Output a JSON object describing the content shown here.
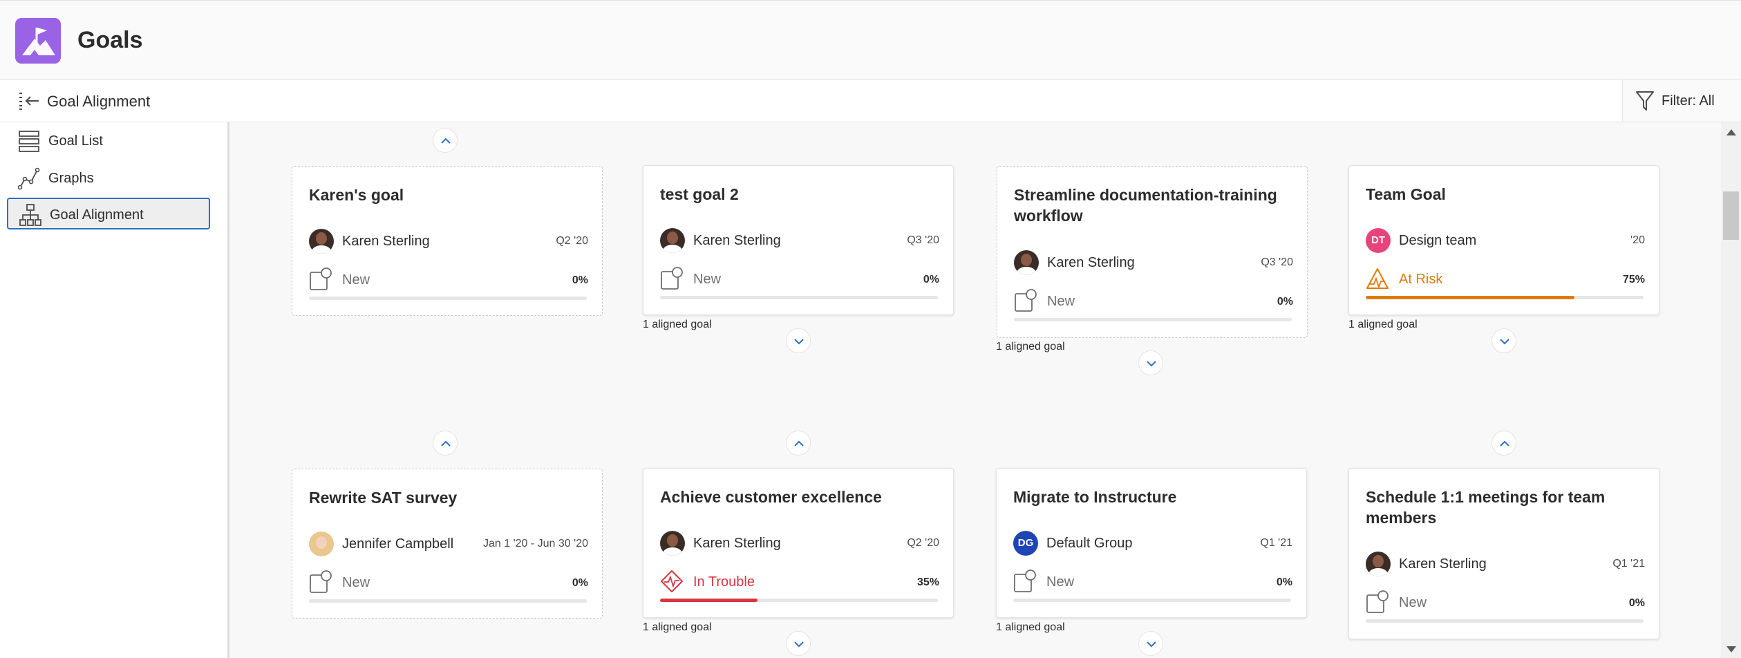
{
  "app": {
    "title": "Goals"
  },
  "subheader": {
    "title": "Goal Alignment",
    "filter_label": "Filter: All"
  },
  "sidebar": {
    "items": [
      {
        "label": "Goal List",
        "icon": "list-icon"
      },
      {
        "label": "Graphs",
        "icon": "graph-icon"
      },
      {
        "label": "Goal Alignment",
        "icon": "hierarchy-icon",
        "active": true
      }
    ]
  },
  "colors": {
    "accent": "#2b6fc9",
    "at_risk": "#e07a00",
    "in_trouble": "#d7373f",
    "design_team": "#e8447c",
    "default_group": "#1f45b5",
    "app_logo": "#9a63e6"
  },
  "cards": [
    {
      "title": "Karen's goal",
      "owner": "Karen Sterling",
      "owner_avatar": "photo",
      "date": "Q2 '20",
      "status": "New",
      "percent": "0%",
      "progress": 0,
      "aligned": ""
    },
    {
      "title": "test goal 2",
      "owner": "Karen Sterling",
      "owner_avatar": "photo",
      "date": "Q3 '20",
      "status": "New",
      "percent": "0%",
      "progress": 0,
      "aligned": "1 aligned goal"
    },
    {
      "title": "Streamline documentation-training workflow",
      "owner": "Karen Sterling",
      "owner_avatar": "photo",
      "date": "Q3 '20",
      "status": "New",
      "percent": "0%",
      "progress": 0,
      "aligned": "1 aligned goal"
    },
    {
      "title": "Team Goal",
      "owner": "Design team",
      "owner_initials": "DT",
      "date": "'20",
      "status": "At Risk",
      "percent": "75%",
      "progress": 0.75,
      "aligned": "1 aligned goal"
    },
    {
      "title": "Rewrite SAT survey",
      "owner": "Jennifer Campbell",
      "owner_avatar": "photo-blonde",
      "date": "Jan 1 '20  - Jun 30 '20",
      "status": "New",
      "percent": "0%",
      "progress": 0,
      "aligned": ""
    },
    {
      "title": "Achieve customer excellence",
      "owner": "Karen Sterling",
      "owner_avatar": "photo",
      "date": "Q2 '20",
      "status": "In Trouble",
      "percent": "35%",
      "progress": 0.35,
      "aligned": "1 aligned goal"
    },
    {
      "title": "Migrate to Instructure",
      "owner": "Default Group",
      "owner_initials": "DG",
      "date": "Q1 '21",
      "status": "New",
      "percent": "0%",
      "progress": 0,
      "aligned": "1 aligned goal"
    },
    {
      "title": "Schedule 1:1 meetings for team members",
      "owner": "Karen Sterling",
      "owner_avatar": "photo",
      "date": "Q1 '21",
      "status": "New",
      "percent": "0%",
      "progress": 0,
      "aligned": ""
    }
  ]
}
